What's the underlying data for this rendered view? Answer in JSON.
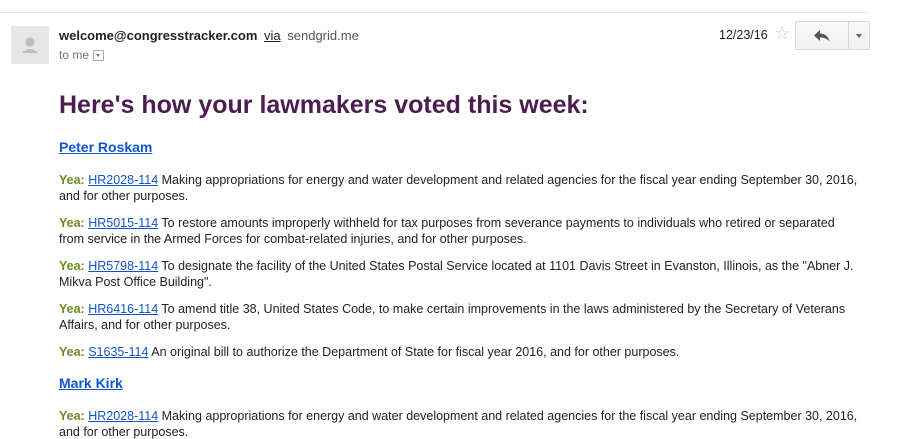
{
  "header": {
    "sender_email": "welcome@congresstracker.com",
    "via_label": "via",
    "via_domain": "sendgrid.me",
    "to_label": "to me",
    "date": "12/23/16"
  },
  "body": {
    "headline": "Here's how your lawmakers voted this week:",
    "lawmakers": [
      {
        "name": "Peter Roskam",
        "votes": [
          {
            "vote": "Yea:",
            "bill": "HR2028-114",
            "text": "Making appropriations for energy and water development and related agencies for the fiscal year ending September 30, 2016, and for other purposes."
          },
          {
            "vote": "Yea:",
            "bill": "HR5015-114",
            "text": "To restore amounts improperly withheld for tax purposes from severance payments to individuals who retired or separated from service in the Armed Forces for combat-related injuries, and for other purposes."
          },
          {
            "vote": "Yea:",
            "bill": "HR5798-114",
            "text": "To designate the facility of the United States Postal Service located at 1101 Davis Street in Evanston, Illinois, as the \"Abner J. Mikva Post Office Building\"."
          },
          {
            "vote": "Yea:",
            "bill": "HR6416-114",
            "text": "To amend title 38, United States Code, to make certain improvements in the laws administered by the Secretary of Veterans Affairs, and for other purposes."
          },
          {
            "vote": "Yea:",
            "bill": "S1635-114",
            "text": "An original bill to authorize the Department of State for fiscal year 2016, and for other purposes."
          }
        ]
      },
      {
        "name": "Mark Kirk",
        "votes": [
          {
            "vote": "Yea:",
            "bill": "HR2028-114",
            "text": "Making appropriations for energy and water development and related agencies for the fiscal year ending September 30, 2016, and for other purposes."
          }
        ]
      }
    ]
  },
  "icons": {
    "avatar": "person-icon",
    "star": "star-icon",
    "reply": "reply-icon",
    "more": "chevron-down-icon",
    "to_dropdown": "dropdown-icon"
  },
  "colors": {
    "headline": "#4a1e4e",
    "link": "#1155cc",
    "yea": "#6b8e23"
  }
}
